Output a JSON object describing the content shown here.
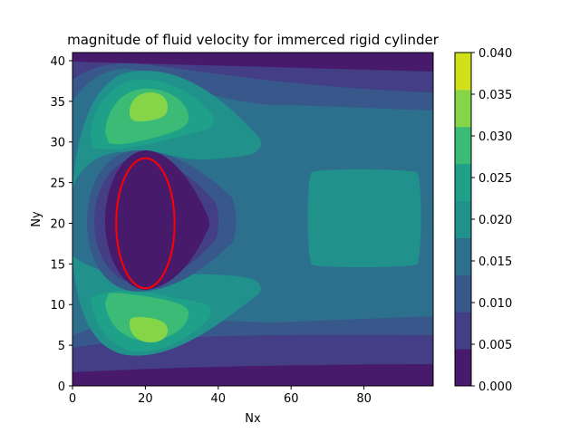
{
  "chart_data": {
    "type": "filled-contour",
    "title": "magnitude of fluid velocity for immerced rigid cylinder",
    "xlabel": "Nx",
    "ylabel": "Ny",
    "xlim": [
      0,
      99
    ],
    "ylim": [
      0,
      41
    ],
    "x_ticks": [
      0,
      20,
      40,
      60,
      80
    ],
    "y_ticks": [
      0,
      5,
      10,
      15,
      20,
      25,
      30,
      35,
      40
    ],
    "grid": false,
    "colormap": "viridis",
    "levels": [
      0.0,
      0.005,
      0.01,
      0.015,
      0.02,
      0.025,
      0.03,
      0.035,
      0.04
    ],
    "colorbar_ticks": [
      "0.000",
      "0.005",
      "0.010",
      "0.015",
      "0.020",
      "0.025",
      "0.030",
      "0.035",
      "0.040"
    ],
    "level_colors": [
      "#481a6c",
      "#433e85",
      "#38588c",
      "#2d708e",
      "#21918c",
      "#1fa088",
      "#3bbb75",
      "#86d549",
      "#d0e11c"
    ],
    "features": [
      {
        "name": "cylinder",
        "shape": "ellipse",
        "center": [
          20,
          20
        ],
        "half_width": 8,
        "half_height": 8,
        "edge_color": "#ff0000",
        "interior_level": 0.0
      },
      {
        "name": "upper vortex peak",
        "center": [
          21,
          34
        ],
        "peak_level": 0.035
      },
      {
        "name": "lower vortex peak",
        "center": [
          21,
          7
        ],
        "peak_level": 0.035
      },
      {
        "name": "downstream plateau",
        "x_range": [
          65,
          98
        ],
        "y_range": [
          15,
          27
        ],
        "level": 0.02
      },
      {
        "name": "bottom wall band",
        "y_range": [
          0,
          2
        ],
        "level": 0.0
      },
      {
        "name": "top wall band",
        "y_range": [
          39,
          41
        ],
        "level": 0.0
      }
    ]
  }
}
